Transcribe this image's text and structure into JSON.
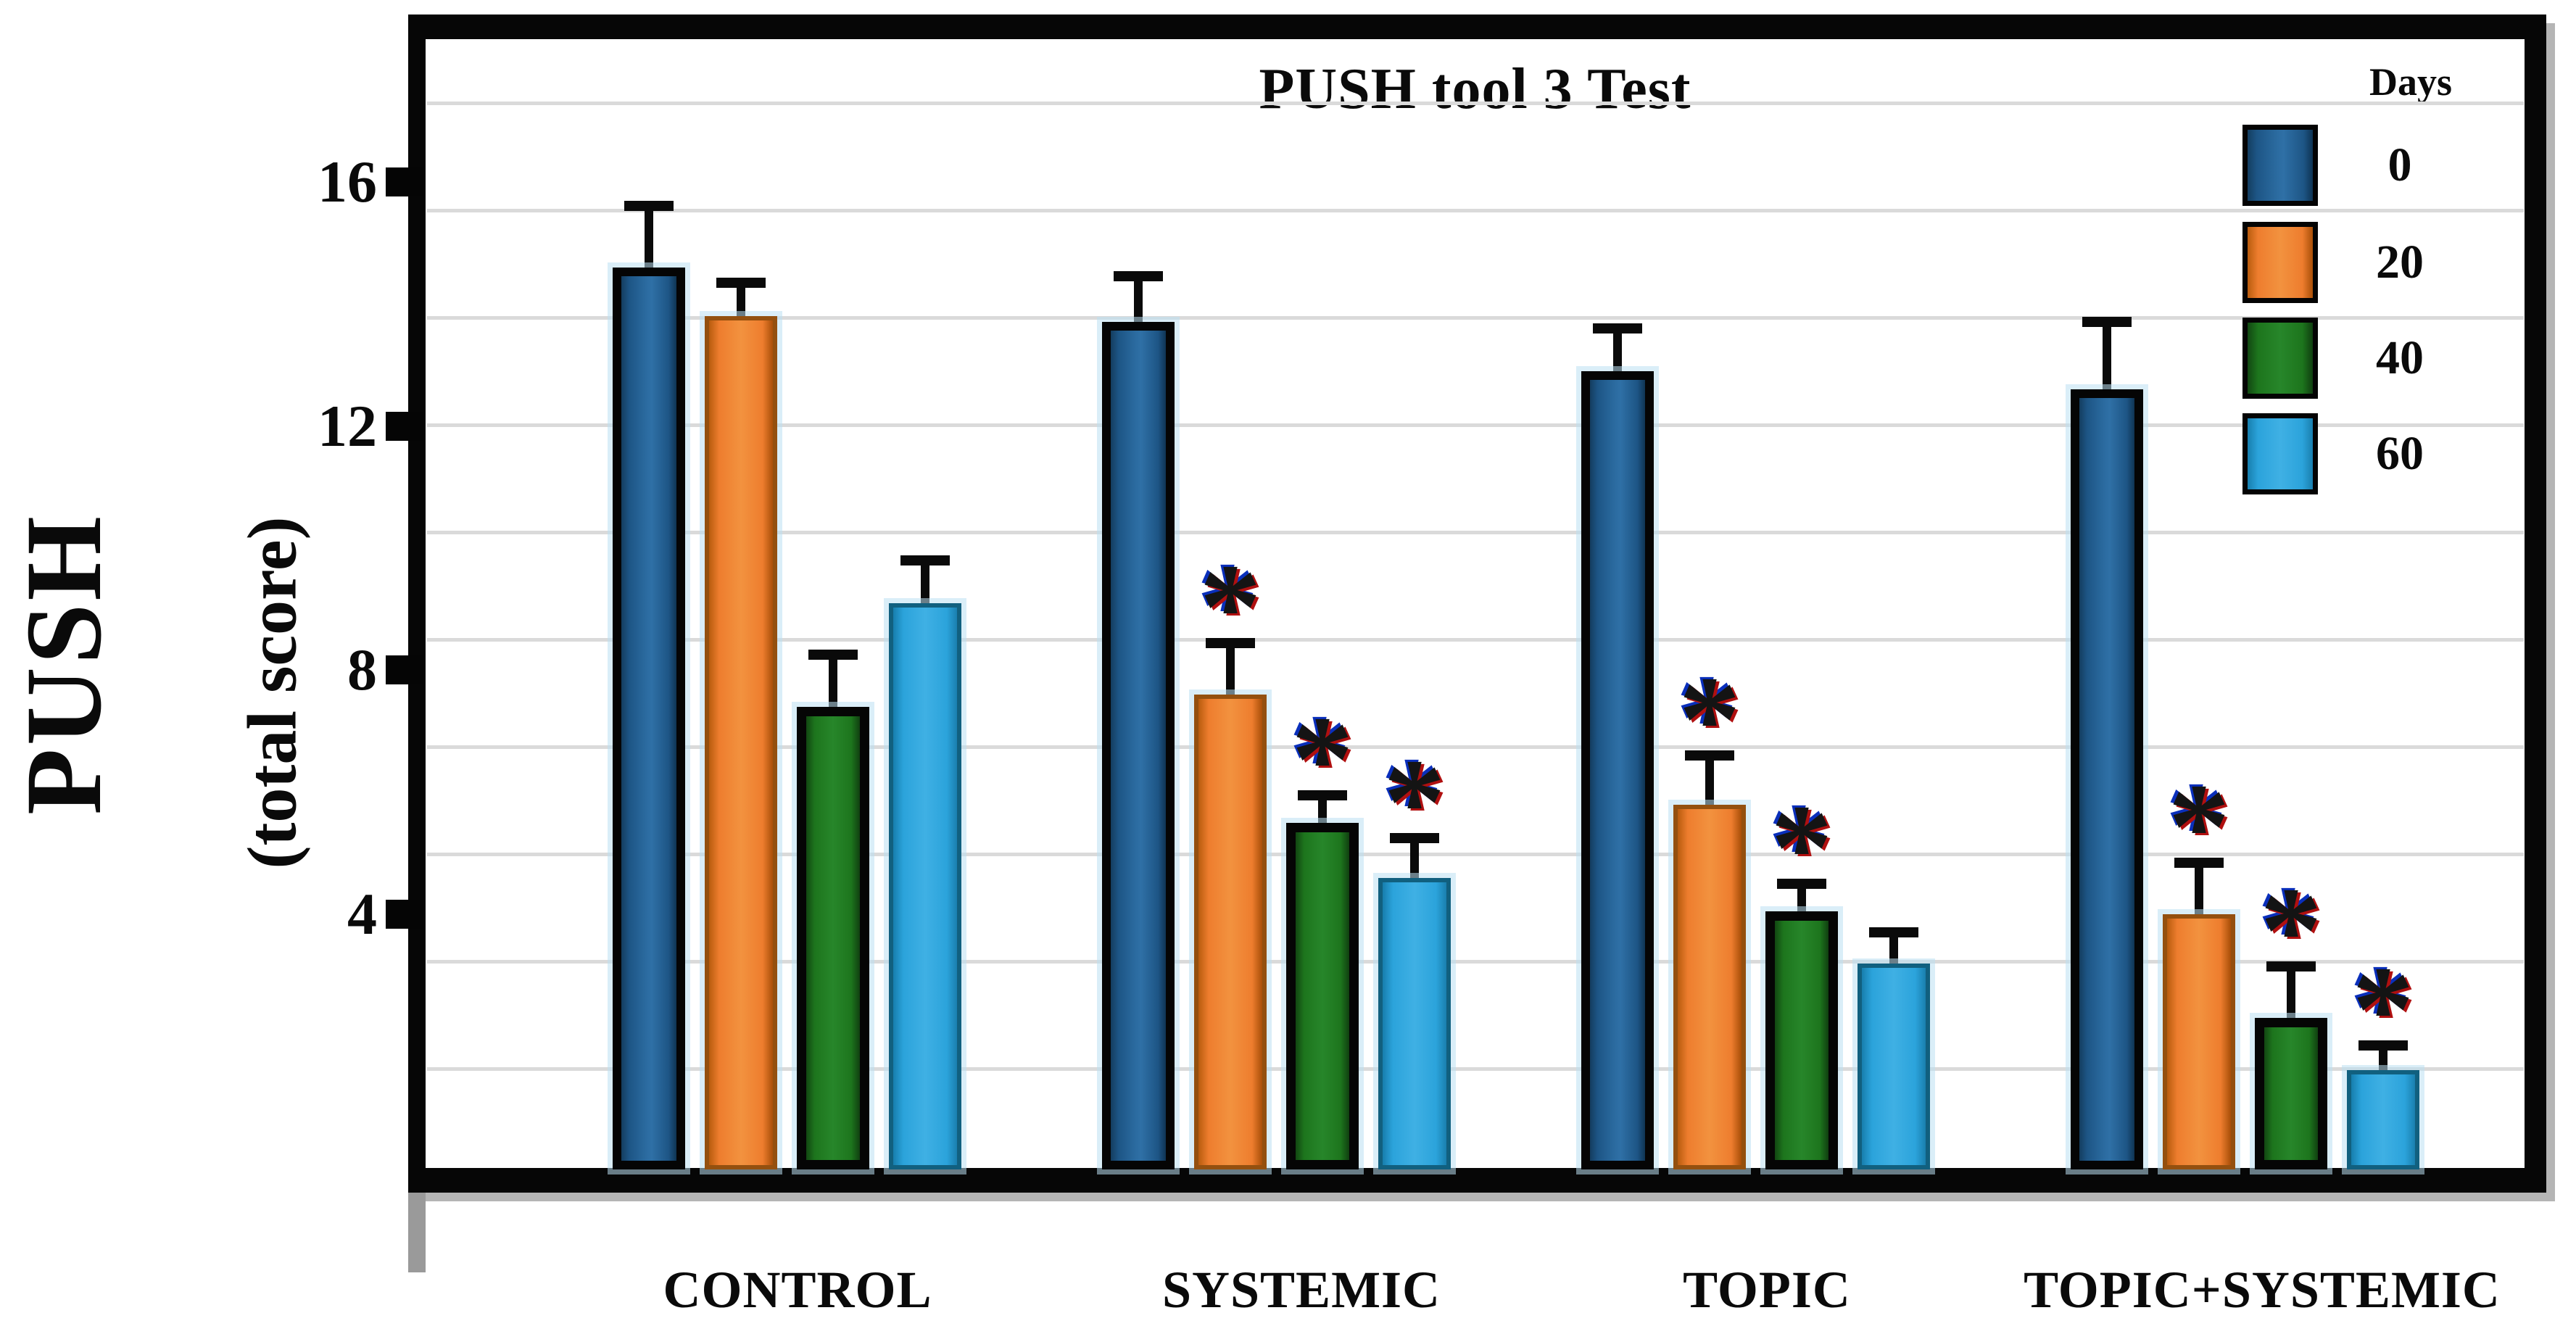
{
  "figure": {
    "title": "PUSH tool 3 Test",
    "y_axis_label_line1": "PUSH",
    "y_axis_label_line2": "(total score)",
    "legend_title": "Days"
  },
  "chart_data": {
    "type": "bar",
    "title": "PUSH tool 3 Test",
    "xlabel": "",
    "ylabel": "PUSH (total score)",
    "categories": [
      "CONTROL",
      "SYSTEMIC",
      "TOPIC",
      "TOPIC+SYSTEMIC"
    ],
    "legend_title": "Days",
    "legend_position": "top-right-inside",
    "error_bars": "upper",
    "significance_marker": "*",
    "grid": true,
    "ylim": [
      0,
      18.4
    ],
    "yticks": [
      16,
      12,
      8,
      4
    ],
    "series": [
      {
        "name": "0",
        "color": "#1f5c8b",
        "values": [
          14.6,
          13.7,
          12.9,
          12.6
        ],
        "errors": [
          1.0,
          0.75,
          0.7,
          1.1
        ],
        "significant": [
          false,
          false,
          false,
          false
        ]
      },
      {
        "name": "20",
        "color": "#ee7d2e",
        "values": [
          13.8,
          7.6,
          5.8,
          4.0
        ],
        "errors": [
          0.55,
          0.85,
          0.8,
          0.85
        ],
        "significant": [
          false,
          true,
          true,
          true
        ]
      },
      {
        "name": "40",
        "color": "#1d751d",
        "values": [
          7.4,
          5.5,
          4.05,
          2.3
        ],
        "errors": [
          0.85,
          0.45,
          0.45,
          0.85
        ],
        "significant": [
          false,
          true,
          true,
          true
        ]
      },
      {
        "name": "60",
        "color": "#2ba3db",
        "values": [
          9.1,
          4.6,
          3.2,
          1.45
        ],
        "errors": [
          0.7,
          0.65,
          0.5,
          0.4
        ],
        "significant": [
          false,
          true,
          false,
          true
        ]
      }
    ]
  }
}
